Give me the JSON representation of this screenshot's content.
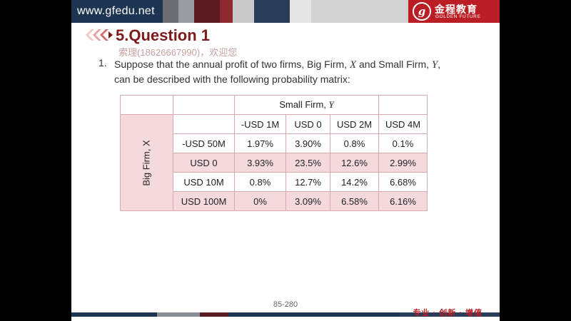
{
  "header": {
    "site_url": "www.gfedu.net",
    "brand_name": "金程教育",
    "brand_sub": "GOLDEN FUTURE",
    "logo_glyph": "g"
  },
  "colors": {
    "brand_red": "#ba1e24",
    "title_color": "#7d1a1a",
    "cell_pink": "#f4dadd",
    "border_pink": "#d8aab0"
  },
  "slide": {
    "title": "5.Question 1",
    "watermark": "索理(18626667990)，欢迎您",
    "question_number": "1.",
    "question_line1_pre": "Suppose that the annual profit of two firms, Big Firm, ",
    "question_x": "X",
    "question_line1_mid": " and Small Firm, ",
    "question_y": "Y",
    "question_line1_post": ",",
    "question_line2": "can be described with the following probability matrix:"
  },
  "table": {
    "col_group_label": "Small Firm, ",
    "col_group_var": "Y",
    "row_group_label": "Big Firm, X",
    "columns": [
      "-USD 1M",
      "USD 0",
      "USD 2M",
      "USD 4M"
    ],
    "rows": [
      {
        "label": "-USD 50M",
        "values": [
          "1.97%",
          "3.90%",
          "0.8%",
          "0.1%"
        ]
      },
      {
        "label": "USD 0",
        "values": [
          "3.93%",
          "23.5%",
          "12.6%",
          "2.99%"
        ]
      },
      {
        "label": "USD 10M",
        "values": [
          "0.8%",
          "12.7%",
          "14.2%",
          "6.68%"
        ]
      },
      {
        "label": "USD 100M",
        "values": [
          "0%",
          "3.09%",
          "6.58%",
          "6.16%"
        ]
      }
    ]
  },
  "footer": {
    "page_number": "85-280",
    "tagline": "专业 · 创新 · 增值"
  }
}
